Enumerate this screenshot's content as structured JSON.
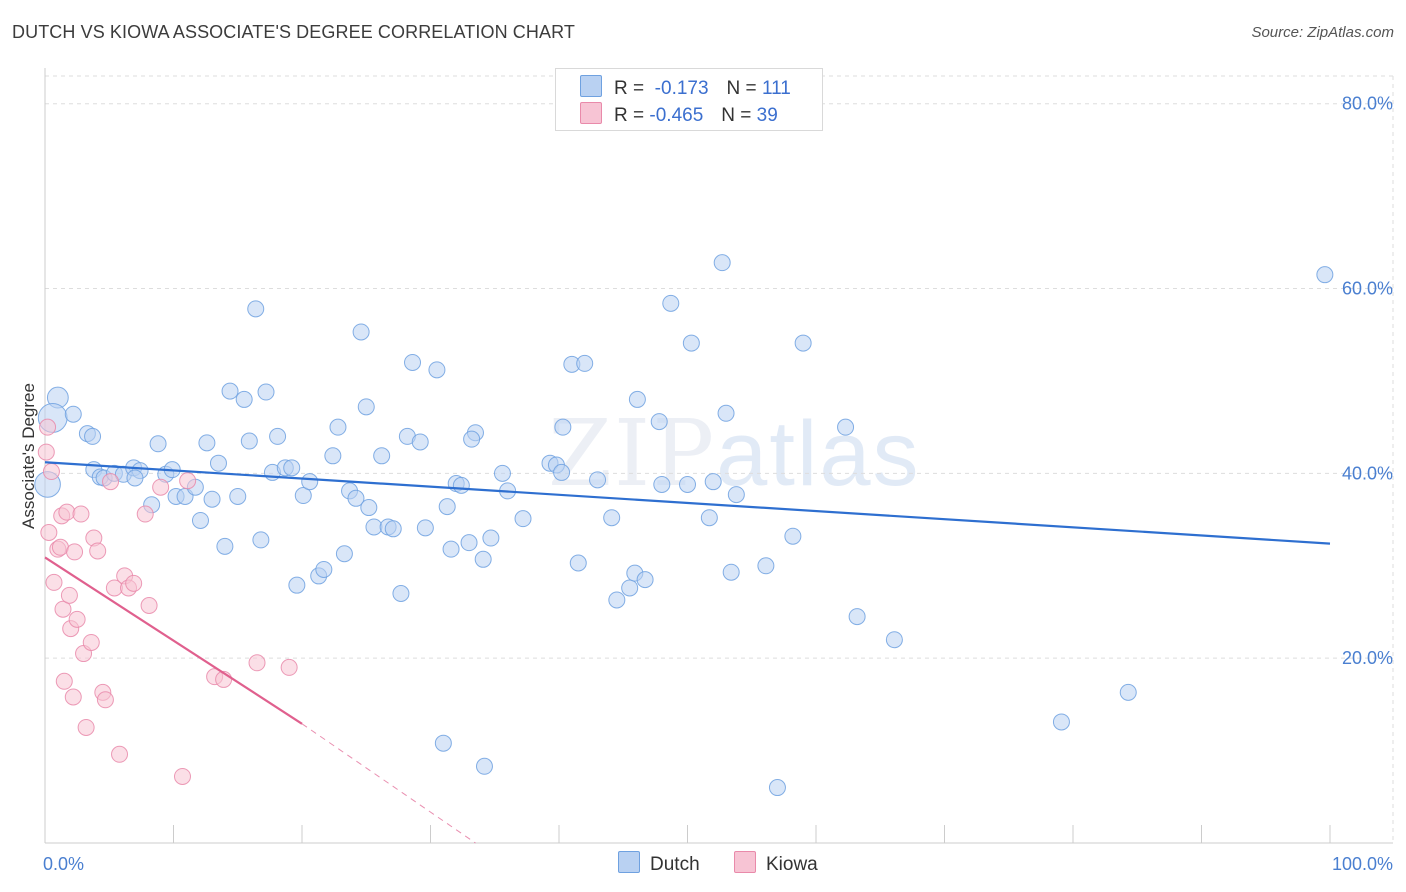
{
  "title": "DUTCH VS KIOWA ASSOCIATE'S DEGREE CORRELATION CHART",
  "source": "Source: ZipAtlas.com",
  "watermark": {
    "zip": "ZIP",
    "atlas": "atlas"
  },
  "colors": {
    "dutch": "#6fa1e0",
    "dutch_fill": "#b9d1f2",
    "dutch_line": "#2e6fd0",
    "kiowa": "#e98aaa",
    "kiowa_fill": "#f7c4d4",
    "kiowa_line": "#e0608e",
    "grid": "#dddddd",
    "axis_text": "#4a7fd0"
  },
  "legend": {
    "rows": [
      {
        "r_label": "R =",
        "r_value": "-0.173",
        "n_label": "N =",
        "n_value": "111"
      },
      {
        "r_label": "R =",
        "r_value": "-0.465",
        "n_label": "N =",
        "n_value": "39"
      }
    ]
  },
  "bottom_legend": {
    "dutch": "Dutch",
    "kiowa": "Kiowa"
  },
  "chart_data": {
    "type": "scatter",
    "title": "DUTCH VS KIOWA ASSOCIATE'S DEGREE CORRELATION CHART",
    "xlabel": "",
    "ylabel": "Associate's Degree",
    "xlim": [
      0,
      100
    ],
    "ylim": [
      0,
      83
    ],
    "x_tick_labels": [
      "0.0%",
      "100.0%"
    ],
    "y_ticks": [
      20,
      40,
      60,
      80
    ],
    "y_tick_labels": [
      "20.0%",
      "40.0%",
      "60.0%",
      "80.0%"
    ],
    "grid": true,
    "series": [
      {
        "name": "Dutch",
        "trend": {
          "x": [
            0,
            100
          ],
          "y": [
            41.2,
            32.4
          ]
        },
        "points": [
          [
            0.2,
            38.8,
            1.6
          ],
          [
            1.0,
            48.2,
            1.3
          ],
          [
            0.6,
            46.0,
            1.8
          ],
          [
            2.2,
            46.4,
            1
          ],
          [
            3.3,
            44.3,
            1
          ],
          [
            3.7,
            44.0,
            1
          ],
          [
            3.8,
            40.4,
            1
          ],
          [
            4.3,
            39.6,
            1
          ],
          [
            4.6,
            39.5,
            1
          ],
          [
            5.4,
            40.0,
            1
          ],
          [
            6.1,
            39.9,
            1
          ],
          [
            6.9,
            40.6,
            1
          ],
          [
            7.4,
            40.3,
            1
          ],
          [
            7.0,
            39.5,
            1
          ],
          [
            8.3,
            36.6,
            1
          ],
          [
            8.8,
            43.2,
            1
          ],
          [
            9.4,
            39.9,
            1
          ],
          [
            9.9,
            40.4,
            1
          ],
          [
            10.2,
            37.5,
            1
          ],
          [
            10.9,
            37.5,
            1
          ],
          [
            11.7,
            38.5,
            1
          ],
          [
            12.1,
            34.9,
            1
          ],
          [
            12.6,
            43.3,
            1
          ],
          [
            13.0,
            37.2,
            1
          ],
          [
            13.5,
            41.1,
            1
          ],
          [
            14.0,
            32.1,
            1
          ],
          [
            14.4,
            48.9,
            1
          ],
          [
            15.0,
            37.5,
            1
          ],
          [
            15.5,
            48.0,
            1
          ],
          [
            15.9,
            43.5,
            1
          ],
          [
            16.4,
            57.8,
            1
          ],
          [
            16.8,
            32.8,
            1
          ],
          [
            17.2,
            48.8,
            1
          ],
          [
            17.7,
            40.1,
            1
          ],
          [
            18.1,
            44.0,
            1
          ],
          [
            18.7,
            40.6,
            1
          ],
          [
            19.2,
            40.6,
            1
          ],
          [
            19.6,
            27.9,
            1
          ],
          [
            20.1,
            37.6,
            1
          ],
          [
            20.6,
            39.1,
            1
          ],
          [
            21.3,
            28.9,
            1
          ],
          [
            21.7,
            29.6,
            1
          ],
          [
            22.4,
            41.9,
            1
          ],
          [
            22.8,
            45.0,
            1
          ],
          [
            23.3,
            31.3,
            1
          ],
          [
            23.7,
            38.1,
            1
          ],
          [
            24.2,
            37.3,
            1
          ],
          [
            24.6,
            55.3,
            1
          ],
          [
            25.0,
            47.2,
            1
          ],
          [
            25.2,
            36.3,
            1
          ],
          [
            25.6,
            34.2,
            1
          ],
          [
            26.2,
            41.9,
            1
          ],
          [
            26.7,
            34.2,
            1
          ],
          [
            27.1,
            34.0,
            1
          ],
          [
            27.7,
            27.0,
            1
          ],
          [
            28.2,
            44.0,
            1
          ],
          [
            28.6,
            52.0,
            1
          ],
          [
            29.2,
            43.4,
            1
          ],
          [
            29.6,
            34.1,
            1
          ],
          [
            30.5,
            51.2,
            1
          ],
          [
            31.3,
            36.4,
            1
          ],
          [
            31.6,
            31.8,
            1
          ],
          [
            32.0,
            38.9,
            1
          ],
          [
            32.4,
            38.7,
            1
          ],
          [
            33.0,
            32.5,
            1
          ],
          [
            33.5,
            44.4,
            1
          ],
          [
            33.2,
            43.7,
            1
          ],
          [
            34.1,
            30.7,
            1
          ],
          [
            34.7,
            33.0,
            1
          ],
          [
            35.6,
            40.0,
            1
          ],
          [
            36.0,
            38.1,
            1
          ],
          [
            37.2,
            35.1,
            1
          ],
          [
            39.3,
            41.1,
            1
          ],
          [
            39.8,
            40.9,
            1
          ],
          [
            40.2,
            40.1,
            1
          ],
          [
            40.3,
            45.0,
            1
          ],
          [
            41.0,
            51.8,
            1
          ],
          [
            41.5,
            30.3,
            1
          ],
          [
            42.0,
            51.9,
            1
          ],
          [
            43.0,
            39.3,
            1
          ],
          [
            44.1,
            35.2,
            1
          ],
          [
            44.5,
            26.3,
            1
          ],
          [
            45.5,
            27.6,
            1
          ],
          [
            45.9,
            29.2,
            1
          ],
          [
            46.1,
            48.0,
            1
          ],
          [
            46.7,
            28.5,
            1
          ],
          [
            47.8,
            45.6,
            1
          ],
          [
            48.0,
            38.8,
            1
          ],
          [
            48.7,
            58.4,
            1
          ],
          [
            50.0,
            38.8,
            1
          ],
          [
            50.3,
            54.1,
            1
          ],
          [
            51.7,
            35.2,
            1
          ],
          [
            52.0,
            39.1,
            1
          ],
          [
            52.7,
            62.8,
            1
          ],
          [
            53.0,
            46.5,
            1
          ],
          [
            53.4,
            29.3,
            1
          ],
          [
            53.8,
            37.7,
            1
          ],
          [
            56.1,
            30.0,
            1
          ],
          [
            58.2,
            33.2,
            1
          ],
          [
            59.0,
            54.1,
            1
          ],
          [
            62.3,
            45.0,
            1
          ],
          [
            63.2,
            24.5,
            1
          ],
          [
            66.1,
            22.0,
            1
          ],
          [
            31.0,
            10.8,
            1
          ],
          [
            34.2,
            8.3,
            1
          ],
          [
            57.0,
            6.0,
            1
          ],
          [
            79.1,
            13.1,
            1
          ],
          [
            84.3,
            16.3,
            1
          ],
          [
            99.6,
            61.5,
            1
          ]
        ]
      },
      {
        "name": "Kiowa",
        "trend": {
          "x": [
            0,
            20
          ],
          "y": [
            30.9,
            12.9
          ]
        },
        "trend_extension": {
          "x": [
            20,
            33.5
          ],
          "y": [
            12.9,
            0
          ]
        },
        "points": [
          [
            0.1,
            42.3,
            1
          ],
          [
            0.2,
            45.0,
            1
          ],
          [
            0.3,
            33.6,
            1
          ],
          [
            0.5,
            40.2,
            1
          ],
          [
            0.7,
            28.2,
            1
          ],
          [
            1.0,
            31.8,
            1
          ],
          [
            1.3,
            35.4,
            1
          ],
          [
            1.2,
            32.0,
            1
          ],
          [
            1.4,
            25.3,
            1
          ],
          [
            1.5,
            17.5,
            1
          ],
          [
            1.7,
            35.8,
            1
          ],
          [
            1.9,
            26.8,
            1
          ],
          [
            2.0,
            23.2,
            1
          ],
          [
            2.2,
            15.8,
            1
          ],
          [
            2.3,
            31.5,
            1
          ],
          [
            2.5,
            24.2,
            1
          ],
          [
            2.8,
            35.6,
            1
          ],
          [
            3.0,
            20.5,
            1
          ],
          [
            3.2,
            12.5,
            1
          ],
          [
            3.6,
            21.7,
            1
          ],
          [
            3.8,
            33.0,
            1
          ],
          [
            4.1,
            31.6,
            1
          ],
          [
            4.5,
            16.3,
            1
          ],
          [
            4.7,
            15.5,
            1
          ],
          [
            5.1,
            39.1,
            1
          ],
          [
            5.4,
            27.6,
            1
          ],
          [
            5.8,
            9.6,
            1
          ],
          [
            6.2,
            28.9,
            1
          ],
          [
            6.5,
            27.6,
            1
          ],
          [
            6.9,
            28.1,
            1
          ],
          [
            7.8,
            35.6,
            1
          ],
          [
            8.1,
            25.7,
            1
          ],
          [
            9.0,
            38.5,
            1
          ],
          [
            10.7,
            7.2,
            1
          ],
          [
            11.1,
            39.2,
            1
          ],
          [
            13.2,
            18.0,
            1
          ],
          [
            13.9,
            17.7,
            1
          ],
          [
            16.5,
            19.5,
            1
          ],
          [
            19.0,
            19.0,
            1
          ]
        ]
      }
    ]
  }
}
